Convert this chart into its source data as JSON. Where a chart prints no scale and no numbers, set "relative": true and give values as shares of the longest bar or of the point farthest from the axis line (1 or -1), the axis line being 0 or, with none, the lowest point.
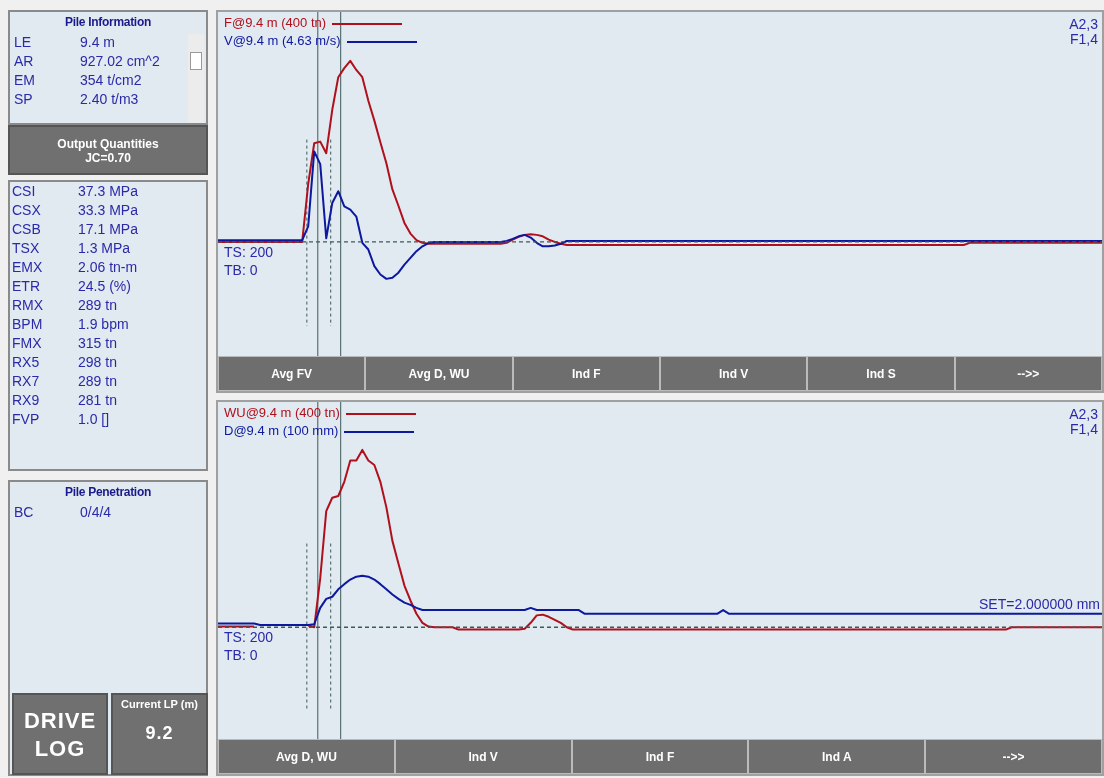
{
  "chart_data": [
    {
      "type": "other",
      "title": "Pile Information",
      "annotations": [
        "LE",
        "9.4 m",
        "AR",
        "927.02 cm^2",
        "EM",
        "354 t/cm2",
        "SP",
        "2.40 t/m3"
      ]
    },
    {
      "type": "other",
      "title": "Output Quantities",
      "subtitle": "JC=0.70",
      "annotations": [
        "CSI",
        "37.3 MPa",
        "CSX",
        "33.3 MPa",
        "CSB",
        "17.1 MPa",
        "TSX",
        "1.3 MPa",
        "EMX",
        "2.06 tn-m",
        "ETR",
        "24.5 (%)",
        "RMX",
        "289 tn",
        "BPM",
        "1.9 bpm",
        "FMX",
        "315 tn",
        "RX5",
        "298 tn",
        "RX7",
        "289 tn",
        "RX9",
        "281 tn",
        "FVP",
        "1.0 []"
      ]
    },
    {
      "type": "other",
      "title": "Pile Penetration",
      "annotations": [
        "BC",
        "0/4/4"
      ]
    },
    {
      "type": "other",
      "annotations": [
        "DRIVE LOG"
      ]
    },
    {
      "type": "other",
      "title": "Current LP (m)",
      "annotations": [
        "9.2"
      ]
    },
    {
      "type": "line",
      "relative": true,
      "legend": "top left",
      "marker": "none",
      "line_style": "solid",
      "categories": [
        null,
        null,
        null,
        null,
        null,
        null,
        null,
        null,
        null,
        null,
        null,
        null,
        null,
        null,
        null,
        null,
        null,
        null,
        null,
        null,
        null,
        null,
        null,
        null,
        null,
        null,
        null,
        null,
        null,
        null,
        null,
        null,
        null,
        null,
        null,
        null,
        null,
        null,
        null,
        null,
        null,
        null,
        null,
        null,
        null,
        null,
        null,
        null,
        null,
        null,
        null,
        null,
        null,
        null,
        null,
        null,
        null,
        null,
        null,
        null,
        null,
        null,
        null,
        null,
        null,
        null,
        null,
        null,
        null,
        null,
        null,
        null,
        null,
        null,
        null,
        null,
        null,
        null,
        null,
        null,
        null,
        null,
        null,
        null,
        null,
        null,
        null,
        null,
        null,
        null,
        null,
        null,
        null,
        null,
        null,
        null,
        null,
        null,
        null,
        null,
        null,
        null,
        null,
        null,
        null,
        null,
        null,
        null,
        null,
        null,
        null,
        null,
        null,
        null,
        null,
        null,
        null,
        null,
        null,
        null,
        null,
        null,
        null,
        null,
        null,
        null,
        null,
        null,
        null,
        null,
        null,
        null,
        null,
        null,
        null,
        null,
        null,
        null,
        null,
        null,
        null,
        null,
        null,
        null,
        null,
        null,
        null,
        null
      ],
      "series": [
        {
          "name": "F@9.4 m (400 tn)",
          "color": "#b0101c",
          "values": [
            0,
            0,
            0,
            0,
            0,
            0,
            0,
            0,
            0,
            0,
            0,
            0,
            0,
            0,
            0,
            0.32,
            0.545,
            0.554,
            0.49,
            0.73,
            0.91,
            0.96,
            1,
            0.95,
            0.91,
            0.78,
            0.67,
            0.55,
            0.435,
            0.29,
            0.2,
            0.105,
            0.046,
            0.01,
            -0.005,
            -0.01,
            -0.01,
            -0.01,
            -0.01,
            -0.01,
            -0.01,
            -0.01,
            -0.01,
            -0.01,
            -0.01,
            -0.01,
            -0.01,
            -0.01,
            -0.005,
            0.013,
            0.028,
            0.039,
            0.042,
            0.039,
            0.031,
            0.013,
            0,
            -0.01,
            -0.017,
            -0.017,
            -0.017,
            -0.017,
            -0.017,
            -0.017,
            -0.017,
            -0.017,
            -0.017,
            -0.017,
            -0.017,
            -0.017,
            -0.017,
            -0.017,
            -0.017,
            -0.017,
            -0.017,
            -0.017,
            -0.017,
            -0.017,
            -0.017,
            -0.017,
            -0.017,
            -0.017,
            -0.017,
            -0.017,
            -0.017,
            -0.017,
            -0.017,
            -0.017,
            -0.017,
            -0.017,
            -0.017,
            -0.017,
            -0.017,
            -0.017,
            -0.017,
            -0.017,
            -0.017,
            -0.017,
            -0.017,
            -0.017,
            -0.017,
            -0.017,
            -0.017,
            -0.017,
            -0.017,
            -0.017,
            -0.017,
            -0.017,
            -0.017,
            -0.017,
            -0.017,
            -0.017,
            -0.017,
            -0.017,
            -0.017,
            -0.017,
            -0.017,
            -0.017,
            -0.017,
            -0.017,
            -0.017,
            -0.017,
            -0.017,
            -0.017,
            -0.017,
            -0.005,
            -0.005,
            -0.005,
            -0.005,
            -0.005,
            -0.005,
            -0.005,
            -0.005,
            -0.005,
            -0.005,
            -0.005,
            -0.005,
            -0.005,
            -0.005,
            -0.005,
            -0.005,
            -0.005,
            -0.005,
            -0.005,
            -0.005,
            -0.005,
            -0.005,
            -0.005
          ]
        },
        {
          "name": "V@9.4 m (4.63 m/s)",
          "color": "#0c189e",
          "values": [
            0.01,
            0.01,
            0.01,
            0.01,
            0.01,
            0.01,
            0.01,
            0.01,
            0.01,
            0.01,
            0.01,
            0.01,
            0.01,
            0.01,
            0.01,
            0.086,
            0.5,
            0.43,
            0.02,
            0.215,
            0.28,
            0.196,
            0.178,
            0.14,
            -0.005,
            -0.042,
            -0.134,
            -0.18,
            -0.204,
            -0.198,
            -0.17,
            -0.125,
            -0.088,
            -0.051,
            -0.024,
            -0.006,
            0,
            0,
            0,
            0,
            0,
            0,
            0,
            0,
            0,
            0,
            0,
            0,
            0.005,
            0.017,
            0.031,
            0.039,
            0.024,
            -0.005,
            -0.024,
            -0.024,
            -0.02,
            -0.01,
            0.005,
            0.005,
            0.005,
            0.005,
            0.005,
            0.005,
            0.005,
            0.005,
            0.005,
            0.005,
            0.005,
            0.005,
            0.005,
            0.005,
            0.005,
            0.005,
            0.005,
            0.005,
            0.005,
            0.005,
            0.005,
            0.005,
            0.005,
            0.005,
            0.005,
            0.005,
            0.005,
            0.005,
            0.005,
            0.005,
            0.005,
            0.005,
            0.005,
            0.005,
            0.005,
            0.005,
            0.005,
            0.005,
            0.005,
            0.005,
            0.005,
            0.005,
            0.005,
            0.005,
            0.005,
            0.005,
            0.005,
            0.005,
            0.005,
            0.005,
            0.005,
            0.005,
            0.005,
            0.005,
            0.005,
            0.005,
            0.005,
            0.005,
            0.005,
            0.005,
            0.005,
            0.005,
            0.005,
            0.005,
            0.005,
            0.005,
            0.005,
            0.005,
            0.005,
            0.005,
            0.005,
            0.005,
            0.005,
            0.005,
            0.005,
            0.005,
            0.005,
            0.005,
            0.005,
            0.005,
            0.005,
            0.005,
            0.005,
            0.005,
            0.005,
            0.005,
            0.005,
            0.005,
            0.005,
            0.005
          ]
        }
      ],
      "ref_lines": [
        {
          "axis": "y",
          "value": 0,
          "color": "#3c5a5a",
          "line_style": "dashed"
        }
      ],
      "annotations": [
        "TS: 200",
        "TB: 0",
        "A2,3",
        "F1,4",
        "Avg FV",
        "Avg D, WU",
        "Ind F",
        "Ind V",
        "Ind S",
        "-->>"
      ]
    },
    {
      "type": "line",
      "relative": true,
      "legend": "top left",
      "marker": "none",
      "line_style": "solid",
      "categories": [
        null,
        null,
        null,
        null,
        null,
        null,
        null,
        null,
        null,
        null,
        null,
        null,
        null,
        null,
        null,
        null,
        null,
        null,
        null,
        null,
        null,
        null,
        null,
        null,
        null,
        null,
        null,
        null,
        null,
        null,
        null,
        null,
        null,
        null,
        null,
        null,
        null,
        null,
        null,
        null,
        null,
        null,
        null,
        null,
        null,
        null,
        null,
        null,
        null,
        null,
        null,
        null,
        null,
        null,
        null,
        null,
        null,
        null,
        null,
        null,
        null,
        null,
        null,
        null,
        null,
        null,
        null,
        null,
        null,
        null,
        null,
        null,
        null,
        null,
        null,
        null,
        null,
        null,
        null,
        null,
        null,
        null,
        null,
        null,
        null,
        null,
        null,
        null,
        null,
        null,
        null,
        null,
        null,
        null,
        null,
        null,
        null,
        null,
        null,
        null,
        null,
        null,
        null,
        null,
        null,
        null,
        null,
        null,
        null,
        null,
        null,
        null,
        null,
        null,
        null,
        null,
        null,
        null,
        null,
        null,
        null,
        null,
        null,
        null,
        null,
        null,
        null,
        null,
        null,
        null,
        null,
        null,
        null,
        null,
        null,
        null,
        null,
        null,
        null,
        null,
        null,
        null,
        null,
        null,
        null,
        null,
        null,
        null
      ],
      "series": [
        {
          "name": "WU@9.4 m (400 tn)",
          "color": "#b0101c",
          "values": [
            0.004,
            0.004,
            0.004,
            0.004,
            0.004,
            0.004,
            0.004,
            null,
            null,
            null,
            null,
            null,
            null,
            null,
            null,
            0.01,
            0,
            0.277,
            0.655,
            0.73,
            0.74,
            0.82,
            0.94,
            0.94,
            1,
            0.94,
            0.915,
            0.82,
            0.676,
            0.487,
            0.36,
            0.235,
            0.151,
            0.076,
            0.025,
            0.004,
            0,
            0,
            0,
            0,
            -0.013,
            -0.013,
            -0.013,
            -0.013,
            -0.013,
            -0.013,
            -0.013,
            -0.013,
            -0.013,
            -0.013,
            -0.013,
            -0.008,
            0.025,
            0.067,
            0.071,
            0.059,
            0.042,
            0.025,
            0,
            -0.013,
            -0.013,
            -0.013,
            -0.013,
            -0.013,
            -0.013,
            -0.013,
            -0.013,
            -0.013,
            -0.013,
            -0.013,
            -0.013,
            -0.013,
            -0.013,
            -0.013,
            -0.013,
            -0.013,
            -0.013,
            -0.013,
            -0.013,
            -0.013,
            -0.013,
            -0.013,
            -0.013,
            -0.013,
            -0.013,
            -0.013,
            -0.013,
            -0.013,
            -0.013,
            -0.013,
            -0.013,
            -0.013,
            -0.013,
            -0.013,
            -0.013,
            -0.013,
            -0.013,
            -0.013,
            -0.013,
            -0.013,
            -0.013,
            -0.013,
            -0.013,
            -0.013,
            -0.013,
            -0.013,
            -0.013,
            -0.013,
            -0.013,
            -0.013,
            -0.013,
            -0.013,
            -0.013,
            -0.013,
            -0.013,
            -0.013,
            -0.013,
            -0.013,
            -0.013,
            -0.013,
            -0.013,
            -0.013,
            -0.013,
            -0.013,
            -0.013,
            -0.013,
            -0.013,
            -0.013,
            -0.013,
            -0.013,
            -0.013,
            -0.013,
            0,
            0,
            0,
            0,
            0,
            0,
            0,
            0,
            0,
            0,
            0,
            0,
            0,
            0,
            0,
            0
          ]
        },
        {
          "name": "D@9.4 m (100 mm)",
          "color": "#0c189e",
          "values": [
            0.021,
            0.021,
            0.021,
            0.021,
            0.021,
            0.021,
            0.021,
            0.013,
            0.013,
            0.013,
            0.013,
            0.013,
            0.013,
            0.013,
            0.013,
            0.013,
            0.017,
            0.109,
            0.16,
            0.172,
            0.214,
            0.243,
            0.269,
            0.285,
            0.29,
            0.285,
            0.269,
            0.243,
            0.214,
            0.185,
            0.16,
            0.139,
            0.126,
            0.109,
            0.097,
            0.097,
            0.097,
            0.097,
            0.097,
            0.097,
            0.097,
            0.097,
            0.097,
            0.097,
            0.097,
            0.097,
            0.097,
            0.097,
            0.097,
            0.097,
            0.097,
            0.097,
            0.109,
            0.097,
            0.097,
            0.097,
            0.097,
            0.097,
            0.097,
            0.097,
            0.097,
            0.076,
            0.076,
            0.076,
            0.076,
            0.076,
            0.076,
            0.076,
            0.076,
            0.076,
            0.076,
            0.076,
            0.076,
            0.076,
            0.076,
            0.076,
            0.076,
            0.076,
            0.076,
            0.076,
            0.076,
            0.076,
            0.076,
            0.076,
            0.097,
            0.076,
            0.076,
            0.076,
            0.076,
            0.076,
            0.076,
            0.076,
            0.076,
            0.076,
            0.076,
            0.076,
            0.076,
            0.076,
            0.076,
            0.076,
            0.076,
            0.076,
            0.076,
            0.076,
            0.076,
            0.076,
            0.076,
            0.076,
            0.076,
            0.076,
            0.076,
            0.076,
            0.076,
            0.076,
            0.076,
            0.076,
            0.076,
            0.076,
            0.076,
            0.076,
            0.076,
            0.076,
            0.076,
            0.076,
            0.076,
            0.076,
            0.076,
            0.076,
            0.076,
            0.076,
            0.076,
            0.076,
            0.076,
            0.076,
            0.076,
            0.076,
            0.076,
            0.076,
            0.076,
            0.076,
            0.076,
            0.076,
            0.076,
            0.076,
            0.076,
            0.076,
            0.076,
            0.076
          ]
        }
      ],
      "ref_lines": [
        {
          "axis": "y",
          "value": 0,
          "color": "#3c5a5a",
          "line_style": "dashed"
        }
      ],
      "annotations": [
        "TS: 200",
        "TB: 0",
        "A2,3",
        "F1,4",
        {
          "text": "SET=2.000000 mm",
          "y": 0.076
        },
        "Avg D, WU",
        "Ind V",
        "Ind F",
        "Ind A",
        "-->>"
      ]
    }
  ]
}
